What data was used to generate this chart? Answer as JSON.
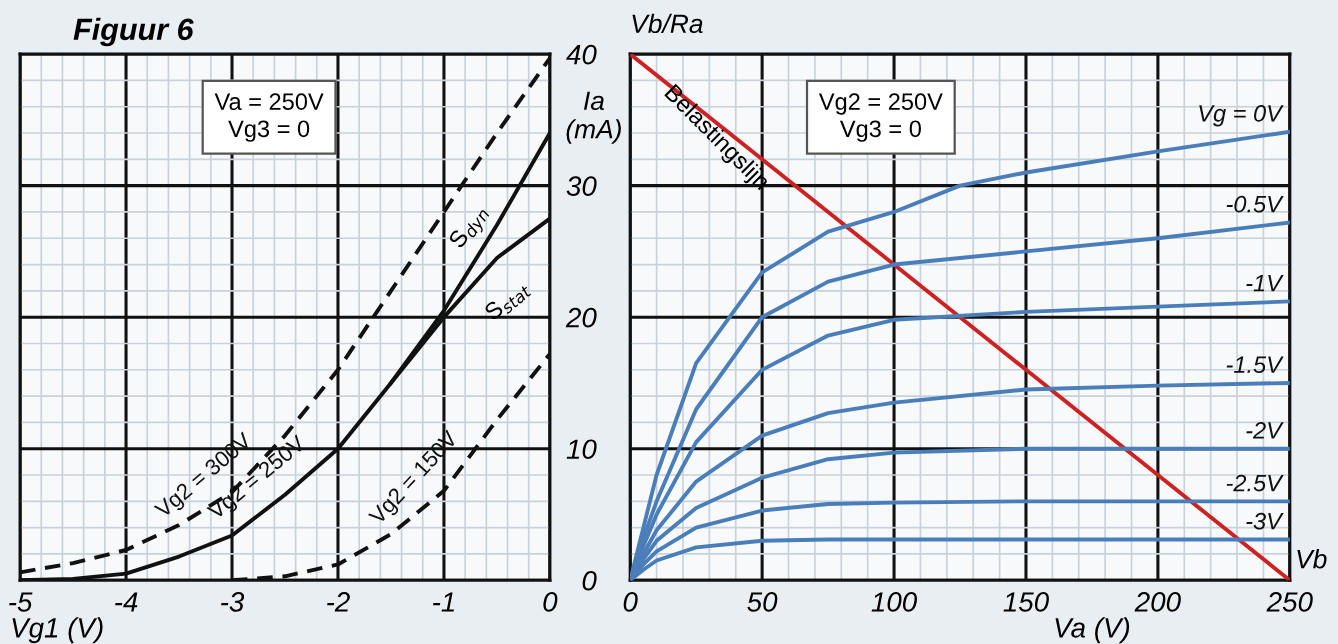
{
  "chart_data": [
    {
      "type": "line",
      "title": "Figuur 6",
      "xlabel": "Vg1 (V)",
      "xlim": [
        -5,
        0
      ],
      "xticks": [
        -5,
        -4,
        -3,
        -2,
        -1,
        0
      ],
      "ylim": [
        0,
        40
      ],
      "yticks": [
        0,
        10,
        20,
        30,
        40
      ],
      "tick_labels": "x",
      "grid": true,
      "legend": false,
      "annotations": [
        "Va = 250V\nVg3 = 0",
        "S$_{dyn}$",
        "S$_{stat}$"
      ],
      "series": [
        {
          "name": "Vg2 = 300V",
          "color": "#111111",
          "line_style": "dashed",
          "x": [
            -5,
            -4.5,
            -4,
            -3.5,
            -3,
            -2.5,
            -2,
            -1.5,
            -1,
            -0.5,
            0
          ],
          "values": [
            0.6,
            1.3,
            2.3,
            4.2,
            6.7,
            11,
            16,
            22,
            28,
            34,
            39.7
          ]
        },
        {
          "name": "Vg2 = 250V",
          "color": "#111111",
          "line_style": "solid",
          "x": [
            -5,
            -4.5,
            -4,
            -3.5,
            -3,
            -2.5,
            -2,
            -1.5,
            -1,
            -0.5,
            0
          ],
          "values": [
            0,
            0.1,
            0.5,
            1.8,
            3.4,
            6.5,
            10,
            15,
            20.5,
            27,
            34
          ]
        },
        {
          "color": "#111111",
          "line_style": "solid",
          "x": [
            -1.5,
            -1,
            -0.5,
            0
          ],
          "values": [
            15,
            20,
            24.5,
            27.5
          ]
        },
        {
          "name": "Vg2 = 150V",
          "color": "#111111",
          "line_style": "dashed",
          "x": [
            -3,
            -2.5,
            -2,
            -1.5,
            -1,
            -0.5,
            0
          ],
          "values": [
            0,
            0.3,
            1.2,
            3.5,
            6.8,
            12.2,
            17.2
          ]
        }
      ]
    },
    {
      "type": "line",
      "xlabel": "Va (V)",
      "ylabel": "Ia\n(mA)",
      "xlim": [
        0,
        250
      ],
      "xticks": [
        0,
        50,
        100,
        150,
        200,
        250
      ],
      "ylim": [
        0,
        40
      ],
      "yticks": [
        0,
        10,
        20,
        30,
        40
      ],
      "grid": true,
      "legend": false,
      "annotations": [
        "Vg2 = 250V\nVg3 = 0",
        {
          "text": "Vb/Ra",
          "x": 0,
          "y": 40
        },
        {
          "text": "Vb",
          "x": 250,
          "y": 0
        },
        "Belastingslijn"
      ],
      "series": [
        {
          "color": "#cc2222",
          "x": [
            0,
            250
          ],
          "values": [
            40,
            0
          ]
        },
        {
          "name": "Vg = 0V",
          "color": "#4a7ebb",
          "x": [
            0,
            5,
            10,
            25,
            50,
            75,
            100,
            125,
            150,
            200,
            250
          ],
          "values": [
            0,
            4,
            8,
            16.5,
            23.4,
            26.5,
            28,
            30,
            31,
            32.6,
            34.1
          ]
        },
        {
          "name": "-0.5V",
          "color": "#4a7ebb",
          "x": [
            0,
            5,
            10,
            25,
            50,
            75,
            100,
            150,
            200,
            250
          ],
          "values": [
            0,
            3.2,
            6,
            13,
            20,
            22.7,
            24,
            25,
            26,
            27.2
          ]
        },
        {
          "name": "-1V",
          "color": "#4a7ebb",
          "x": [
            0,
            5,
            10,
            25,
            50,
            75,
            100,
            150,
            200,
            250
          ],
          "values": [
            0,
            2.6,
            5,
            10.5,
            16,
            18.6,
            19.8,
            20.4,
            20.8,
            21.2
          ]
        },
        {
          "name": "-1.5V",
          "color": "#4a7ebb",
          "x": [
            0,
            5,
            10,
            25,
            50,
            75,
            100,
            150,
            200,
            250
          ],
          "values": [
            0,
            2,
            3.8,
            7.5,
            11,
            12.7,
            13.5,
            14.5,
            14.8,
            15
          ]
        },
        {
          "name": "-2V",
          "color": "#4a7ebb",
          "x": [
            0,
            5,
            10,
            25,
            50,
            75,
            100,
            150,
            200,
            250
          ],
          "values": [
            0,
            1.6,
            3,
            5.5,
            7.8,
            9.2,
            9.7,
            10,
            10,
            10
          ]
        },
        {
          "name": "-2.5V",
          "color": "#4a7ebb",
          "x": [
            0,
            5,
            10,
            25,
            50,
            75,
            100,
            150,
            200,
            250
          ],
          "values": [
            0,
            1.2,
            2.2,
            4,
            5.3,
            5.8,
            5.9,
            6,
            6,
            6
          ]
        },
        {
          "name": "-3V",
          "color": "#4a7ebb",
          "x": [
            0,
            5,
            10,
            25,
            50,
            75,
            100,
            150,
            200,
            250
          ],
          "values": [
            0,
            0.8,
            1.5,
            2.5,
            3,
            3.1,
            3.1,
            3.1,
            3.1,
            3.1
          ]
        }
      ]
    }
  ]
}
